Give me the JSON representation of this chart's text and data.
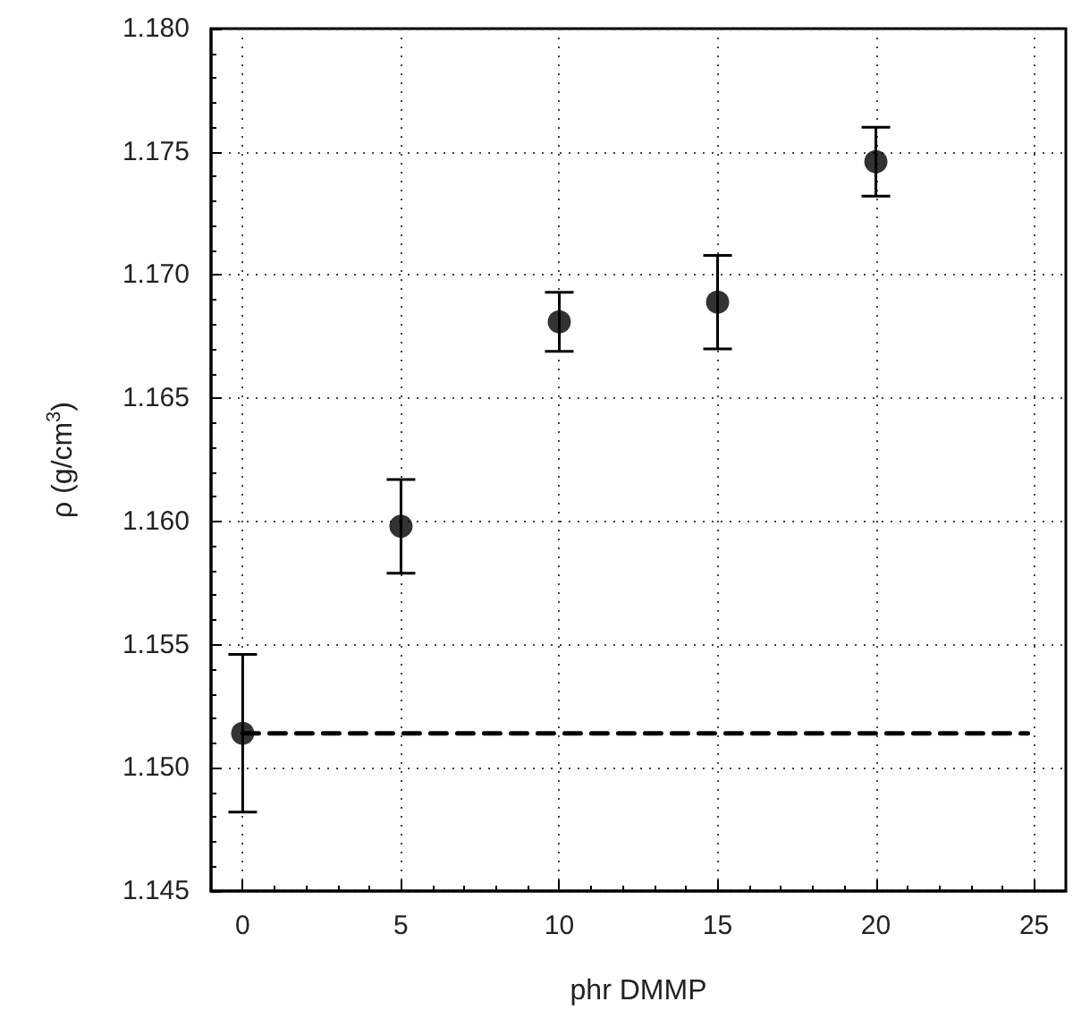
{
  "chart_data": {
    "type": "scatter",
    "xlabel": "phr DMMP",
    "ylabel": "ρ (g/cm$^{3}$)",
    "x": [
      0,
      5,
      10,
      15,
      20
    ],
    "series": [
      {
        "type": "line",
        "x": [
          0,
          24.8
        ],
        "values": [
          1.1514,
          1.1514
        ],
        "color": "#000000",
        "line_style": "dashed",
        "marker": "none"
      },
      {
        "color": "#000000",
        "marker": "circle",
        "values": [
          1.1514,
          1.1598,
          1.1681,
          1.1689,
          1.1746
        ],
        "errors": [
          [
            1.1482,
            1.1546
          ],
          [
            1.1579,
            1.1617
          ],
          [
            1.1669,
            1.1693
          ],
          [
            1.167,
            1.1708
          ],
          [
            1.1732,
            1.176
          ]
        ]
      }
    ],
    "xlim": [
      -1,
      26
    ],
    "xticks": [
      0,
      5,
      10,
      15,
      20,
      25
    ],
    "ylim": [
      1.145,
      1.18
    ],
    "yticks": [
      1.145,
      {
        "value": 1.15,
        "label": "1.150"
      },
      1.155,
      {
        "value": 1.16,
        "label": "1.160"
      },
      1.165,
      {
        "value": 1.17,
        "label": "1.170"
      },
      1.175,
      {
        "value": 1.18,
        "label": "1.180"
      }
    ],
    "grid": true
  }
}
